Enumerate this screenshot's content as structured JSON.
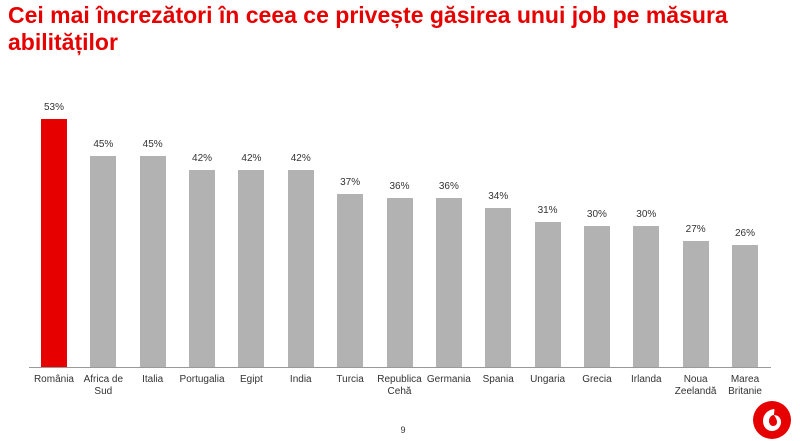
{
  "chart_data": {
    "type": "bar",
    "title": "Cei mai încrezători în ceea ce privește găsirea unui job pe măsura abilităților",
    "categories": [
      "România",
      "Africa de Sud",
      "Italia",
      "Portugalia",
      "Egipt",
      "India",
      "Turcia",
      "Republica Cehă",
      "Germania",
      "Spania",
      "Ungaria",
      "Grecia",
      "Irlanda",
      "Noua Zeelandă",
      "Marea Britanie"
    ],
    "values": [
      53,
      45,
      45,
      42,
      42,
      42,
      37,
      36,
      36,
      34,
      31,
      30,
      30,
      27,
      26
    ],
    "value_labels": [
      "53%",
      "45%",
      "45%",
      "42%",
      "42%",
      "42%",
      "37%",
      "36%",
      "36%",
      "34%",
      "31%",
      "30%",
      "30%",
      "27%",
      "26%"
    ],
    "colors": [
      "#e60000",
      "#b2b2b2",
      "#b2b2b2",
      "#b2b2b2",
      "#b2b2b2",
      "#b2b2b2",
      "#b2b2b2",
      "#b2b2b2",
      "#b2b2b2",
      "#b2b2b2",
      "#b2b2b2",
      "#b2b2b2",
      "#b2b2b2",
      "#b2b2b2",
      "#b2b2b2"
    ],
    "ylim": [
      0,
      57
    ]
  },
  "page_number": "9"
}
